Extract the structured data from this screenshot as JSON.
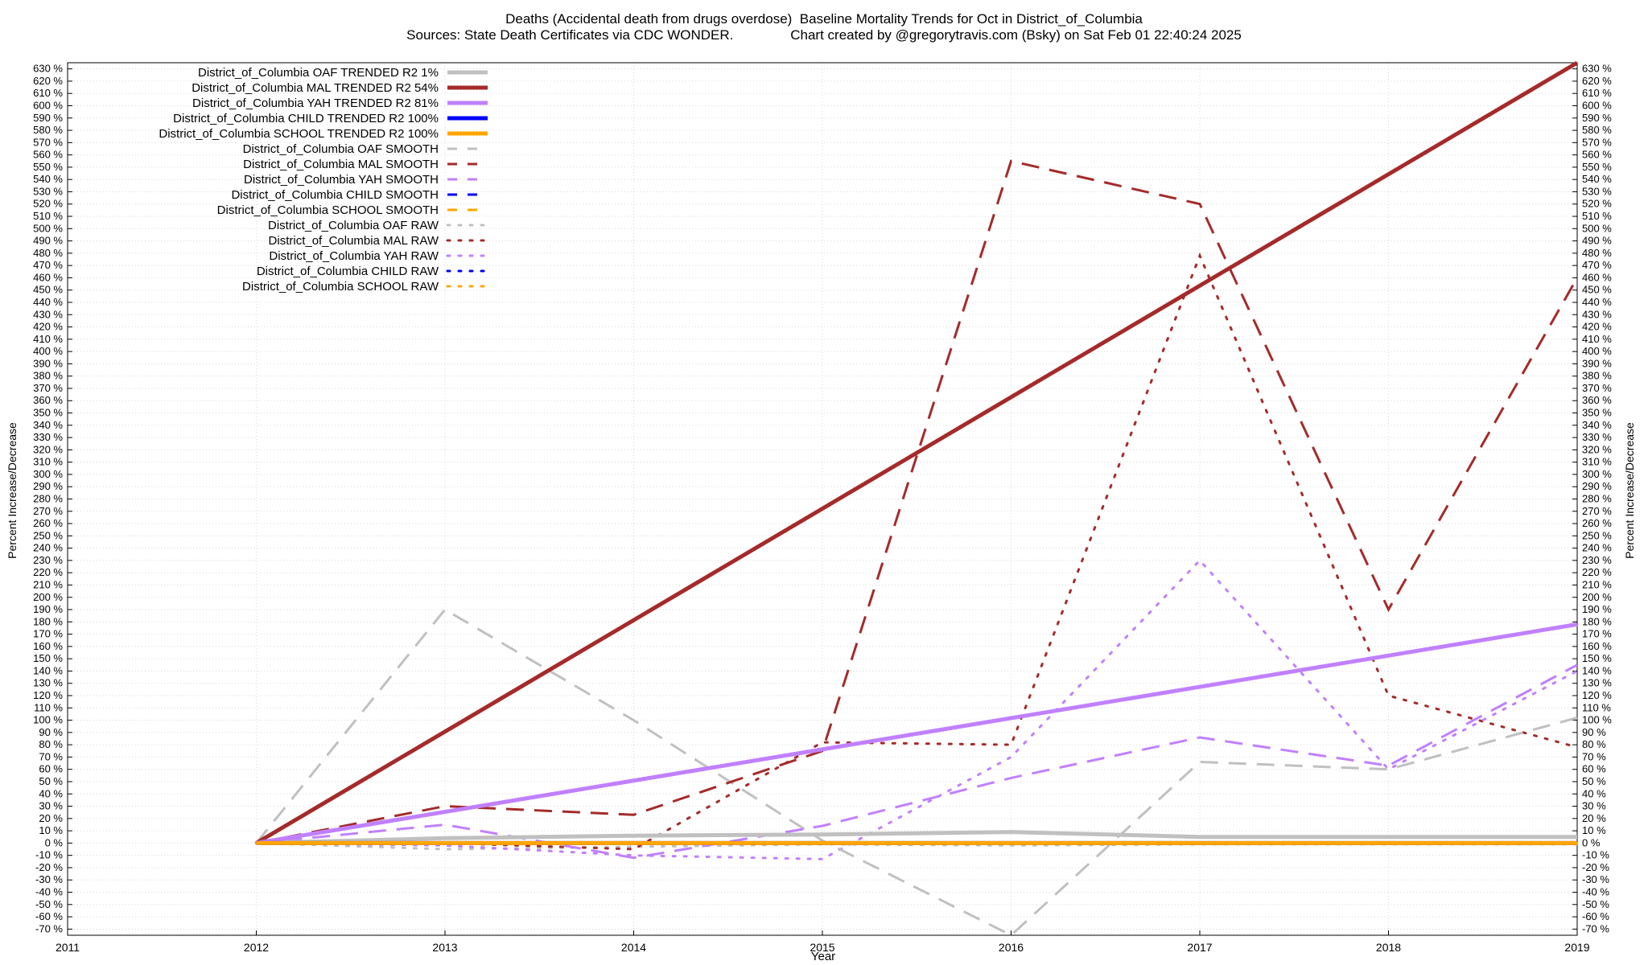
{
  "header": {
    "title_line1": "Deaths (Accidental death from drugs overdose)  Baseline Mortality Trends for Oct in District_of_Columbia",
    "title_line2": "Sources: State Death Certificates via CDC WONDER.               Chart created by @gregorytravis.com (Bsky) on Sat Feb 01 22:40:24 2025"
  },
  "chart_data": {
    "type": "line",
    "xlabel": "Year",
    "ylabel": "Percent Increase/Decrease",
    "y2label": "Percent Increase/Decrease",
    "xlim": [
      2011,
      2019
    ],
    "ylim": [
      -75,
      635
    ],
    "x_ticks": [
      2011,
      2012,
      2013,
      2014,
      2015,
      2016,
      2017,
      2018,
      2019
    ],
    "y_tick_min": -70,
    "y_tick_max": 630,
    "y_tick_step": 10,
    "y_tick_suffix": " %",
    "grid": true,
    "legend_position": "top-left",
    "series": [
      {
        "name": "District_of_Columbia OAF TRENDED R2   1%",
        "color": "#c0c0c0",
        "style": "solid",
        "x": [
          2012,
          2013,
          2014,
          2015,
          2016,
          2017,
          2018,
          2019
        ],
        "y": [
          0,
          4,
          6,
          7,
          9,
          5,
          5,
          5
        ]
      },
      {
        "name": "District_of_Columbia MAL TRENDED R2  54%",
        "color": "#a52a2a",
        "style": "solid",
        "x": [
          2012,
          2019
        ],
        "y": [
          0,
          635
        ]
      },
      {
        "name": "District_of_Columbia YAH TRENDED R2  81%",
        "color": "#c080ff",
        "style": "solid",
        "x": [
          2012,
          2019
        ],
        "y": [
          0,
          178
        ]
      },
      {
        "name": "District_of_Columbia CHILD TRENDED R2 100%",
        "color": "#0000ff",
        "style": "solid",
        "x": [
          2012,
          2019
        ],
        "y": [
          0,
          0
        ]
      },
      {
        "name": "District_of_Columbia SCHOOL TRENDED R2 100%",
        "color": "#ffa500",
        "style": "solid",
        "x": [
          2012,
          2019
        ],
        "y": [
          0,
          0
        ]
      },
      {
        "name": "District_of_Columbia OAF SMOOTH",
        "color": "#c0c0c0",
        "style": "dashed",
        "x": [
          2012,
          2013,
          2014,
          2015,
          2016,
          2017,
          2018,
          2019
        ],
        "y": [
          0,
          190,
          100,
          2,
          -75,
          66,
          60,
          102
        ]
      },
      {
        "name": "District_of_Columbia MAL SMOOTH",
        "color": "#a52a2a",
        "style": "dashed",
        "x": [
          2012,
          2013,
          2014,
          2015,
          2016,
          2017,
          2018,
          2019
        ],
        "y": [
          0,
          30,
          23,
          75,
          555,
          520,
          190,
          460
        ]
      },
      {
        "name": "District_of_Columbia YAH SMOOTH",
        "color": "#c080ff",
        "style": "dashed",
        "x": [
          2012,
          2013,
          2014,
          2015,
          2016,
          2017,
          2018,
          2019
        ],
        "y": [
          0,
          15,
          -12,
          14,
          53,
          86,
          63,
          145
        ]
      },
      {
        "name": "District_of_Columbia CHILD SMOOTH",
        "color": "#0000ff",
        "style": "dashed",
        "x": [
          2012,
          2019
        ],
        "y": [
          0,
          0
        ]
      },
      {
        "name": "District_of_Columbia SCHOOL SMOOTH",
        "color": "#ffa500",
        "style": "dashed",
        "x": [
          2012,
          2019
        ],
        "y": [
          0,
          0
        ]
      },
      {
        "name": "District_of_Columbia OAF RAW",
        "color": "#c0c0c0",
        "style": "dotted",
        "x": [
          2012,
          2013,
          2014,
          2015,
          2016,
          2017,
          2018,
          2019
        ],
        "y": [
          0,
          -5,
          -3,
          -1,
          -2,
          -1,
          -1,
          -1
        ]
      },
      {
        "name": "District_of_Columbia MAL RAW",
        "color": "#a52a2a",
        "style": "dotted",
        "x": [
          2012,
          2013,
          2014,
          2015,
          2016,
          2017,
          2018,
          2019
        ],
        "y": [
          0,
          0,
          -5,
          82,
          80,
          478,
          120,
          78
        ]
      },
      {
        "name": "District_of_Columbia YAH RAW",
        "color": "#c080ff",
        "style": "dotted",
        "x": [
          2012,
          2013,
          2014,
          2015,
          2016,
          2017,
          2018,
          2019
        ],
        "y": [
          0,
          -2,
          -10,
          -13,
          70,
          230,
          60,
          140
        ]
      },
      {
        "name": "District_of_Columbia CHILD RAW",
        "color": "#0000ff",
        "style": "dotted",
        "x": [
          2012,
          2019
        ],
        "y": [
          0,
          0
        ]
      },
      {
        "name": "District_of_Columbia SCHOOL RAW",
        "color": "#ffa500",
        "style": "dotted",
        "x": [
          2012,
          2019
        ],
        "y": [
          0,
          0
        ]
      }
    ]
  }
}
